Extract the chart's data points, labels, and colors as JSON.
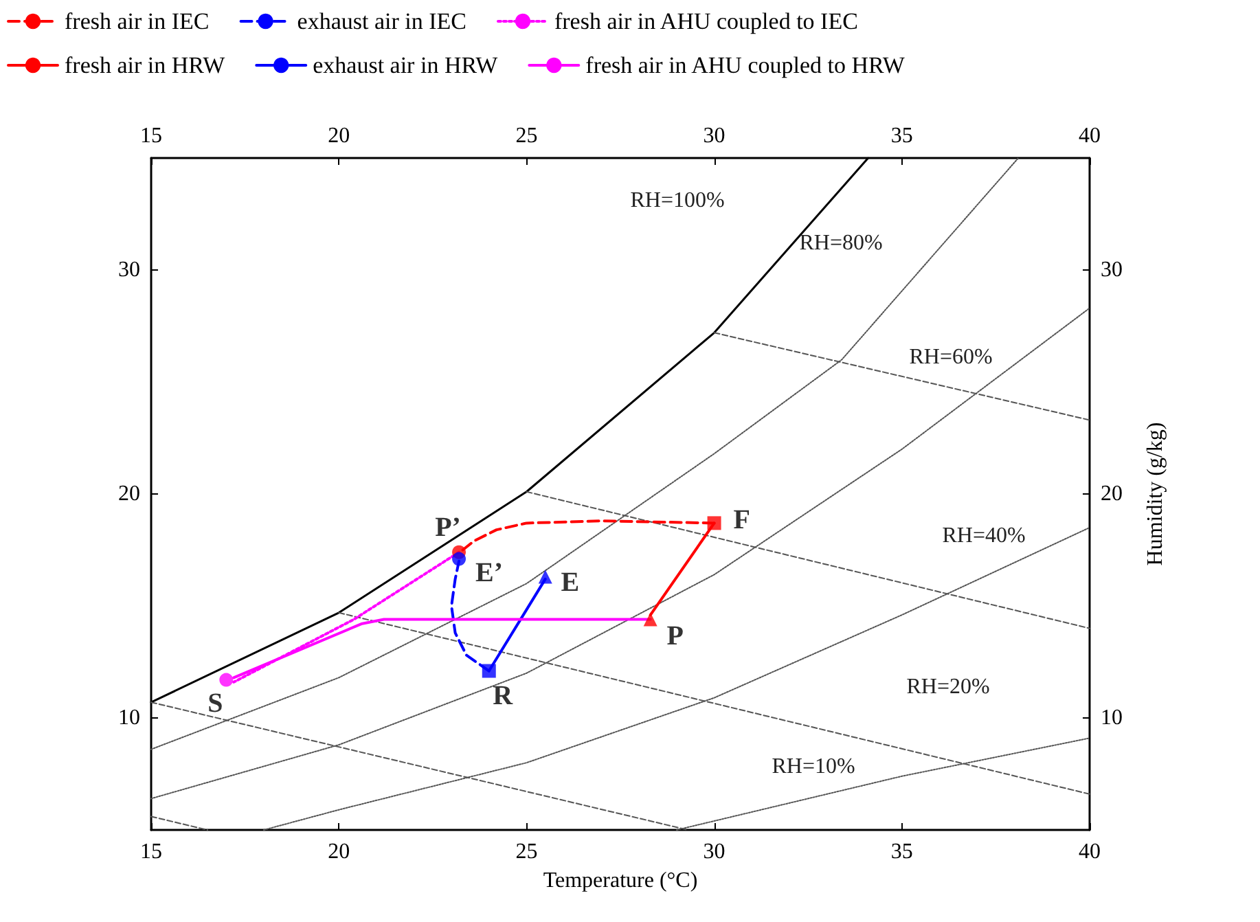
{
  "chart_data": {
    "type": "line",
    "xlabel": "Temperature (°C)",
    "y2label": "Humidity (g/kg)",
    "xlim": [
      15,
      40
    ],
    "xticks": [
      15,
      20,
      25,
      30,
      35,
      40
    ],
    "x2lim": [
      15,
      40
    ],
    "x2ticks": [
      15,
      20,
      25,
      30,
      35,
      40
    ],
    "ylim": [
      5,
      35
    ],
    "yticks": [
      10,
      20,
      30
    ],
    "y2lim": [
      5,
      35
    ],
    "y2ticks": [
      10,
      20,
      30
    ],
    "legend": "top",
    "series": [
      {
        "type": "line",
        "color": "#000000",
        "line_style": "solid",
        "x": [
          15,
          20,
          25,
          30,
          34.1
        ],
        "values": [
          10.7,
          14.7,
          20.1,
          27.2,
          35
        ]
      },
      {
        "type": "line",
        "color": "#555555",
        "line_style": "dotted",
        "x": [
          15,
          20,
          25,
          30,
          33.4,
          38.1
        ],
        "values": [
          8.6,
          11.8,
          16.0,
          21.8,
          26.0,
          35
        ]
      },
      {
        "type": "line",
        "color": "#555555",
        "line_style": "dotted",
        "x": [
          15,
          20,
          25,
          30,
          35,
          40
        ],
        "values": [
          6.4,
          8.8,
          12.0,
          16.4,
          22.0,
          28.3
        ]
      },
      {
        "type": "line",
        "color": "#555555",
        "line_style": "dotted",
        "x": [
          18,
          20,
          25,
          30,
          35,
          40
        ],
        "values": [
          5,
          5.9,
          8.0,
          10.9,
          14.6,
          18.5
        ]
      },
      {
        "type": "line",
        "color": "#555555",
        "line_style": "dotted",
        "x": [
          29,
          35,
          40
        ],
        "values": [
          5,
          7.4,
          9.1
        ]
      },
      {
        "type": "line",
        "color": "#555555",
        "line_style": "dashed",
        "x": [
          30,
          40
        ],
        "values": [
          27.2,
          23.3
        ]
      },
      {
        "type": "line",
        "color": "#555555",
        "line_style": "dashed",
        "x": [
          25,
          40
        ],
        "values": [
          20.1,
          14.0
        ]
      },
      {
        "type": "line",
        "color": "#555555",
        "line_style": "dashed",
        "x": [
          20,
          40
        ],
        "values": [
          14.7,
          6.6
        ]
      },
      {
        "type": "line",
        "color": "#555555",
        "line_style": "dashed",
        "x": [
          15,
          29.3
        ],
        "values": [
          10.7,
          5
        ]
      },
      {
        "type": "line",
        "color": "#555555",
        "line_style": "dashed",
        "x": [
          15,
          16.5
        ],
        "values": [
          5.6,
          5
        ]
      },
      {
        "name": "fresh air in IEC",
        "color": "#ff0000",
        "line_style": "dashed",
        "x": [
          30,
          27,
          25,
          24.2,
          23.6,
          23.3
        ],
        "values": [
          18.7,
          18.8,
          18.7,
          18.4,
          17.9,
          17.5
        ]
      },
      {
        "name": "exhaust air in IEC",
        "type": "line",
        "color": "#0000ff",
        "line_style": "dashed",
        "x": [
          24,
          23.4,
          23.1,
          23.0,
          23.1,
          23.2
        ],
        "values": [
          12.1,
          12.8,
          13.8,
          15.0,
          16.2,
          17.0
        ]
      },
      {
        "name": "fresh air in AHU coupled to IEC",
        "type": "line",
        "color": "#ff00ff",
        "line_style": "dotted",
        "x": [
          23.2,
          20.4,
          17.2
        ],
        "values": [
          17.4,
          14.4,
          11.6
        ]
      },
      {
        "name": "fresh air in HRW",
        "type": "line",
        "color": "#ff0000",
        "line_style": "solid",
        "x": [
          30,
          28.3
        ],
        "values": [
          18.7,
          14.6
        ]
      },
      {
        "name": "exhaust air in HRW",
        "type": "line",
        "color": "#0000ff",
        "line_style": "solid",
        "x": [
          24,
          25.5
        ],
        "values": [
          12.1,
          16.2
        ]
      },
      {
        "name": "fresh air in AHU coupled to HRW",
        "type": "line",
        "color": "#ff00ff",
        "line_style": "solid",
        "x": [
          28.3,
          21.2,
          20.6,
          17.2
        ],
        "values": [
          14.4,
          14.4,
          14.2,
          11.8
        ]
      },
      {
        "type": "scatter",
        "color": "#ff0000",
        "marker": "square",
        "x": [
          30
        ],
        "values": [
          18.7
        ]
      },
      {
        "type": "scatter",
        "color": "#ff0000",
        "marker": "triangle",
        "x": [
          28.3
        ],
        "values": [
          14.4
        ]
      },
      {
        "type": "scatter",
        "color": "#ff0000",
        "marker": "circle",
        "x": [
          23.2
        ],
        "values": [
          17.4
        ]
      },
      {
        "type": "scatter",
        "color": "#0000ff",
        "marker": "circle",
        "x": [
          23.2
        ],
        "values": [
          17.1
        ]
      },
      {
        "type": "scatter",
        "color": "#0000ff",
        "marker": "triangle",
        "x": [
          25.5
        ],
        "values": [
          16.3
        ]
      },
      {
        "type": "scatter",
        "color": "#0000ff",
        "marker": "square",
        "x": [
          24
        ],
        "values": [
          12.1
        ]
      },
      {
        "type": "scatter",
        "color": "#ff00ff",
        "marker": "circle",
        "x": [
          17
        ],
        "values": [
          11.7
        ]
      }
    ],
    "annotations": [
      "RH=100%",
      "RH=80%",
      "RH=60%",
      "RH=40%",
      "RH=20%",
      "RH=10%",
      {
        "text": "F",
        "x": 30,
        "y": 18.7
      },
      {
        "text": "P",
        "x": 28.3,
        "y": 14.4
      },
      {
        "text": "P’",
        "x": 23.2,
        "y": 17.4
      },
      {
        "text": "E’",
        "x": 23.2,
        "y": 17.1
      },
      {
        "text": "E",
        "x": 25.5,
        "y": 16.3
      },
      {
        "text": "R",
        "x": 24,
        "y": 12.1
      },
      {
        "text": "S",
        "x": 17,
        "y": 11.7
      }
    ]
  }
}
